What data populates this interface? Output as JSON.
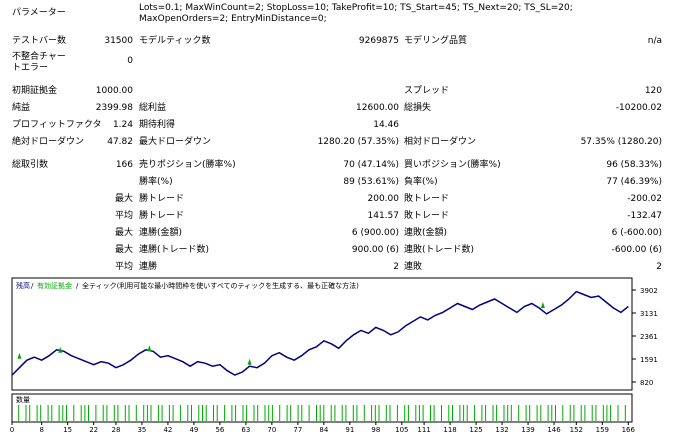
{
  "report": {
    "parameters_label": "パラメーター",
    "parameters_value": "Lots=0.1; MaxWinCount=2; StopLoss=10; TakeProfit=10; TS_Start=45; TS_Next=20; TS_SL=20; MaxOpenOrders=2; EntryMinDistance=0;",
    "test_bars_label": "テストバー数",
    "test_bars_value": "31500",
    "model_ticks_label": "モデルティック数",
    "model_ticks_value": "9269875",
    "model_quality_label": "モデリング品質",
    "model_quality_value": "n/a",
    "mismatch_errors_label": "不整合チャートエラー",
    "mismatch_errors_value": "0",
    "initial_deposit_label": "初期証拠金",
    "initial_deposit_value": "1000.00",
    "spread_label": "スプレッド",
    "spread_value": "120",
    "net_profit_label": "純益",
    "net_profit_value": "2399.98",
    "gross_profit_label": "総利益",
    "gross_profit_value": "12600.00",
    "gross_loss_label": "総損失",
    "gross_loss_value": "-10200.02",
    "profit_factor_label": "プロフィットファクタ",
    "profit_factor_value": "1.24",
    "expected_payoff_label": "期待利得",
    "expected_payoff_value": "14.46",
    "abs_drawdown_label": "絶対ドローダウン",
    "abs_drawdown_value": "47.82",
    "max_drawdown_label": "最大ドローダウン",
    "max_drawdown_value": "1280.20 (57.35%)",
    "rel_drawdown_label": "相対ドローダウン",
    "rel_drawdown_value": "57.35% (1280.20)",
    "total_trades_label": "総取引数",
    "total_trades_value": "166",
    "short_positions_label": "売りポジション(勝率%)",
    "short_positions_value": "70 (47.14%)",
    "long_positions_label": "買いポジション(勝率%)",
    "long_positions_value": "96 (58.33%)",
    "profit_trades_label": "勝率(%)",
    "profit_trades_value": "89 (53.61%)",
    "loss_trades_label": "負率(%)",
    "loss_trades_value": "77 (46.39%)",
    "largest_label": "最大",
    "largest_profit_label": "勝トレード",
    "largest_profit_value": "200.00",
    "largest_loss_label": "敗トレード",
    "largest_loss_value": "-200.02",
    "average_label": "平均",
    "average_profit_label": "勝トレード",
    "average_profit_value": "141.57",
    "average_loss_label": "敗トレード",
    "average_loss_value": "-132.47",
    "max_label": "最大",
    "max_consec_wins_label": "連勝(金額)",
    "max_consec_wins_value": "6 (900.00)",
    "max_consec_losses_label": "連敗(金額)",
    "max_consec_losses_value": "6 (-600.00)",
    "max2_label": "最大",
    "max_consec_profit_label": "連勝(トレード数)",
    "max_consec_profit_value": "900.00 (6)",
    "max_consec_loss_label": "連敗(トレード数)",
    "max_consec_loss_value": "-600.00 (6)",
    "avg2_label": "平均",
    "avg_consec_wins_label": "連勝",
    "avg_consec_wins_value": "2",
    "avg_consec_losses_label": "連敗",
    "avg_consec_losses_value": "2"
  },
  "chart": {
    "legend_balance": "残高",
    "legend_separator1": "/",
    "legend_equity": "有効証拠金",
    "legend_separator2": "/",
    "legend_model": "全ティック(利用可能な最小時間枠を使いすべてのティックを生成する、最も正確な方法)",
    "volume_label": "数量",
    "balance_color": "#000080",
    "equity_color": "#00aa00",
    "volume_color": "#00aa00"
  },
  "chart_data": {
    "type": "line",
    "y_ticks": [
      "3902",
      "3131",
      "2361",
      "1591",
      "820"
    ],
    "ylim": [
      820,
      3902
    ],
    "x_ticks": [
      "0",
      "8",
      "15",
      "22",
      "28",
      "35",
      "42",
      "49",
      "56",
      "63",
      "70",
      "77",
      "84",
      "91",
      "98",
      "105",
      "111",
      "118",
      "125",
      "132",
      "139",
      "146",
      "152",
      "159",
      "166"
    ],
    "xlim": [
      0,
      167
    ],
    "series": [
      {
        "name": "残高",
        "x": [
          0,
          2,
          4,
          6,
          8,
          10,
          12,
          14,
          16,
          18,
          20,
          22,
          24,
          26,
          28,
          30,
          32,
          34,
          36,
          38,
          40,
          42,
          44,
          46,
          48,
          50,
          52,
          54,
          56,
          58,
          60,
          62,
          64,
          66,
          68,
          70,
          72,
          74,
          76,
          78,
          80,
          82,
          84,
          86,
          88,
          90,
          92,
          94,
          96,
          98,
          100,
          102,
          104,
          106,
          108,
          110,
          112,
          114,
          116,
          118,
          120,
          122,
          124,
          126,
          128,
          130,
          132,
          134,
          136,
          138,
          140,
          142,
          144,
          146,
          148,
          150,
          152,
          154,
          156,
          158,
          160,
          162,
          164,
          166
        ],
        "values": [
          1050,
          1300,
          1550,
          1650,
          1550,
          1700,
          1900,
          1850,
          1700,
          1600,
          1500,
          1400,
          1500,
          1450,
          1300,
          1400,
          1550,
          1750,
          1900,
          1850,
          1650,
          1700,
          1600,
          1500,
          1350,
          1500,
          1450,
          1350,
          1400,
          1200,
          1050,
          1150,
          1350,
          1300,
          1450,
          1700,
          1800,
          1650,
          1550,
          1700,
          1900,
          2000,
          2200,
          2100,
          1950,
          2200,
          2400,
          2550,
          2450,
          2650,
          2550,
          2400,
          2500,
          2700,
          2850,
          3000,
          2900,
          3050,
          3150,
          3300,
          3450,
          3350,
          3250,
          3400,
          3500,
          3600,
          3450,
          3300,
          3150,
          3350,
          3450,
          3300,
          3100,
          3250,
          3400,
          3600,
          3850,
          3750,
          3650,
          3700,
          3500,
          3300,
          3150,
          3350
        ]
      }
    ],
    "equity_markers": [
      {
        "x": 2,
        "y": 1700
      },
      {
        "x": 13,
        "y": 1900
      },
      {
        "x": 37,
        "y": 1950
      },
      {
        "x": 64,
        "y": 1500
      },
      {
        "x": 143,
        "y": 3400
      }
    ],
    "volume_bars": [
      0,
      1,
      0,
      1,
      1,
      0,
      1,
      1,
      0,
      1,
      1,
      0,
      1,
      1,
      1,
      0,
      1,
      0,
      1,
      1,
      1,
      0,
      1,
      0,
      1,
      1,
      0,
      1,
      1,
      0,
      1,
      1,
      0,
      1,
      0,
      1,
      1,
      1,
      0,
      1,
      1,
      0,
      1,
      1,
      0,
      1,
      0,
      1,
      1,
      0,
      1,
      1,
      1,
      0,
      1,
      1,
      0,
      1,
      0,
      1,
      1,
      0,
      1,
      1,
      0,
      1,
      1,
      0,
      1,
      1,
      1,
      0,
      1,
      0,
      1,
      1,
      0,
      1,
      1,
      0,
      1,
      0,
      1,
      1,
      1,
      0,
      1,
      1,
      0,
      1,
      1,
      0,
      1,
      1,
      0,
      1,
      0,
      1,
      1,
      1,
      0,
      1,
      1,
      0,
      1,
      0,
      1,
      1,
      0,
      1,
      1,
      1,
      0,
      1,
      1,
      0,
      1,
      0,
      1,
      1,
      0,
      1,
      1,
      1,
      0,
      1,
      0,
      1,
      1,
      0,
      1,
      1,
      0,
      1,
      1,
      1,
      0,
      1,
      0,
      1,
      1,
      0,
      1,
      1,
      0,
      1,
      1,
      1,
      0,
      1,
      0,
      1,
      1,
      0,
      1,
      1,
      0,
      1,
      1,
      0,
      1,
      1,
      1,
      0,
      1,
      0,
      1
    ]
  }
}
